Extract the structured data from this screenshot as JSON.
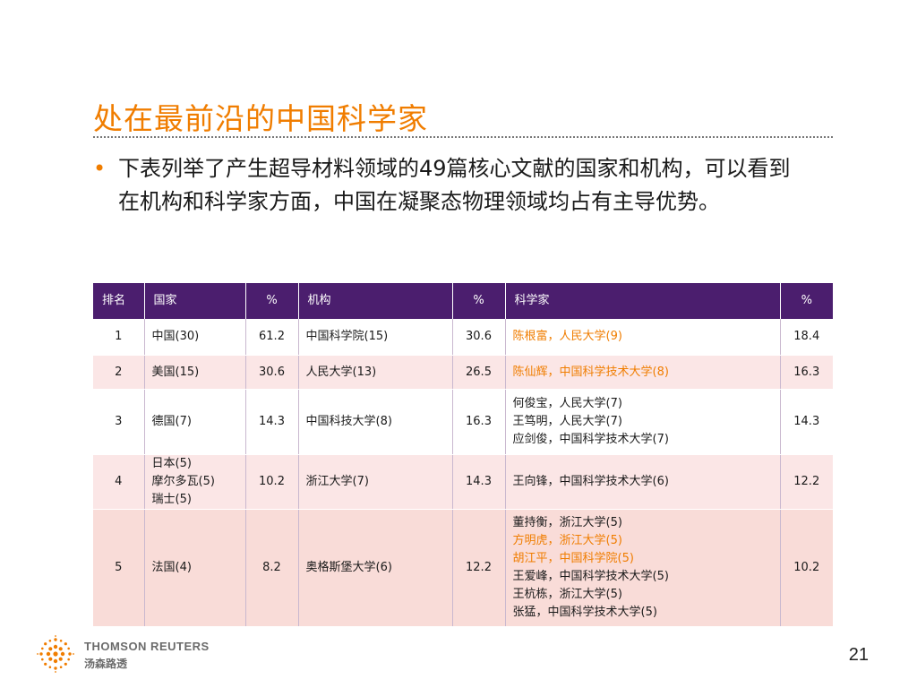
{
  "slide": {
    "title": "处在最前沿的中国科学家",
    "bullet": "下表列举了产生超导材料领域的49篇核心文献的国家和机构，可以看到在机构和科学家方面，中国在凝聚态物理领域均占有主导优势。",
    "page_number": "21"
  },
  "table": {
    "headers": [
      "排名",
      "国家",
      "%",
      "机构",
      "%",
      "科学家",
      "%"
    ],
    "rows": [
      {
        "rank": "1",
        "countries": [
          "中国(30)"
        ],
        "country_pct": "61.2",
        "institution": "中国科学院(15)",
        "inst_pct": "30.6",
        "scientists": [
          "陈根富，人民大学(9)"
        ],
        "sci_pct": "18.4"
      },
      {
        "rank": "2",
        "countries": [
          "美国(15)"
        ],
        "country_pct": "30.6",
        "institution": "人民大学(13)",
        "inst_pct": "26.5",
        "scientists": [
          "陈仙辉，中国科学技术大学(8)"
        ],
        "sci_pct": "16.3"
      },
      {
        "rank": "3",
        "countries": [
          "德国(7)"
        ],
        "country_pct": "14.3",
        "institution": "中国科技大学(8)",
        "inst_pct": "16.3",
        "scientists": [
          "何俊宝，人民大学(7)",
          "王笃明，人民大学(7)",
          "应剑俊，中国科学技术大学(7)"
        ],
        "sci_pct": "14.3"
      },
      {
        "rank": "4",
        "countries": [
          "日本(5)",
          "摩尔多瓦(5)",
          "瑞士(5)"
        ],
        "country_pct": "10.2",
        "institution": "浙江大学(7)",
        "inst_pct": "14.3",
        "scientists": [
          "王向锋，中国科学技术大学(6)"
        ],
        "sci_pct": "12.2"
      },
      {
        "rank": "5",
        "countries": [
          "法国(4)"
        ],
        "country_pct": "8.2",
        "institution": "奥格斯堡大学(6)",
        "inst_pct": "12.2",
        "scientists": [
          "董持衡，浙江大学(5)",
          "方明虎，浙江大学(5)",
          "胡江平，中国科学院(5)",
          "王爱峰，中国科学技术大学(5)",
          "王杭栋，浙江大学(5)",
          "张猛，中国科学技术大学(5)"
        ],
        "sci_pct": "10.2"
      }
    ]
  },
  "logo": {
    "name_en": "THOMSON REUTERS",
    "name_cn": "汤森路透"
  },
  "colors": {
    "accent": "#f07d00",
    "header_bg": "#4b1e6e",
    "row_alt": "#fbe6e6"
  }
}
